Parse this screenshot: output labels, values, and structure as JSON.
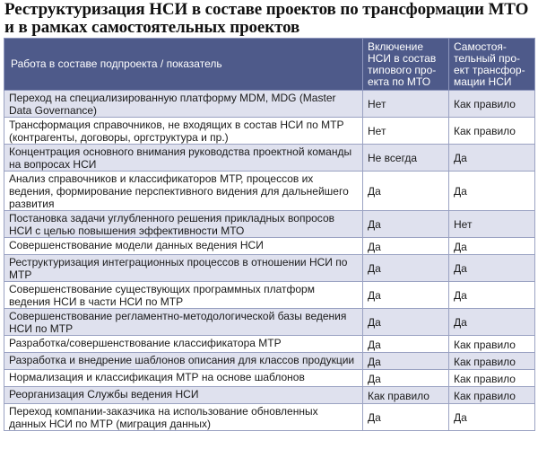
{
  "title": "Реструктуризация НСИ в составе проектов по трансформации МТО\nи в рамках самостоятельных проектов",
  "table": {
    "headers": [
      "Работа в составе подпроекта / показатель",
      "Включение\nНСИ в состав\nтипового про-\nекта по МТО",
      "Самостоя-\nтельный про-\nект трансфор-\nмации НСИ"
    ],
    "rows": [
      {
        "work": "Переход на специализированную платформу MDM, MDG (Master Data Governance)",
        "mto": "Нет",
        "own": "Как правило"
      },
      {
        "work": "Трансформация справочников, не входящих в состав НСИ по МТР (контрагенты, договоры, оргструктура и пр.)",
        "mto": "Нет",
        "own": "Как правило"
      },
      {
        "work": "Концентрация основного внимания руководства проектной команды на вопросах НСИ",
        "mto": "Не всегда",
        "own": "Да"
      },
      {
        "work": "Анализ справочников и классификаторов МТР, процессов их ведения, формирование перспективного видения для дальнейшего развития",
        "mto": "Да",
        "own": "Да"
      },
      {
        "work": "Постановка задачи углубленного решения прикладных вопросов НСИ с целью повышения эффективности МТО",
        "mto": "Да",
        "own": "Нет"
      },
      {
        "work": "Совершенствование модели данных ведения НСИ",
        "mto": "Да",
        "own": "Да"
      },
      {
        "work": "Реструктуризация интеграционных процессов в отношении НСИ по МТР",
        "mto": "Да",
        "own": "Да"
      },
      {
        "work": "Совершенствование существующих программных платформ ведения НСИ в части НСИ по МТР",
        "mto": "Да",
        "own": "Да"
      },
      {
        "work": "Совершенствование регламентно-методологической базы ведения НСИ по МТР",
        "mto": "Да",
        "own": "Да"
      },
      {
        "work": "Разработка/совершенствование классификатора МТР",
        "mto": "Да",
        "own": "Как правило"
      },
      {
        "work": "Разработка и внедрение шаблонов описания для классов продукции",
        "mto": "Да",
        "own": "Как правило"
      },
      {
        "work": "Нормализация и классификация МТР на основе шаблонов",
        "mto": "Да",
        "own": "Как правило"
      },
      {
        "work": "Реорганизация Службы ведения НСИ",
        "mto": "Как правило",
        "own": "Как правило"
      },
      {
        "work": "Переход компании-заказчика на использование обновленных данных НСИ по МТР (миграция данных)",
        "mto": "Да",
        "own": "Да"
      }
    ]
  }
}
